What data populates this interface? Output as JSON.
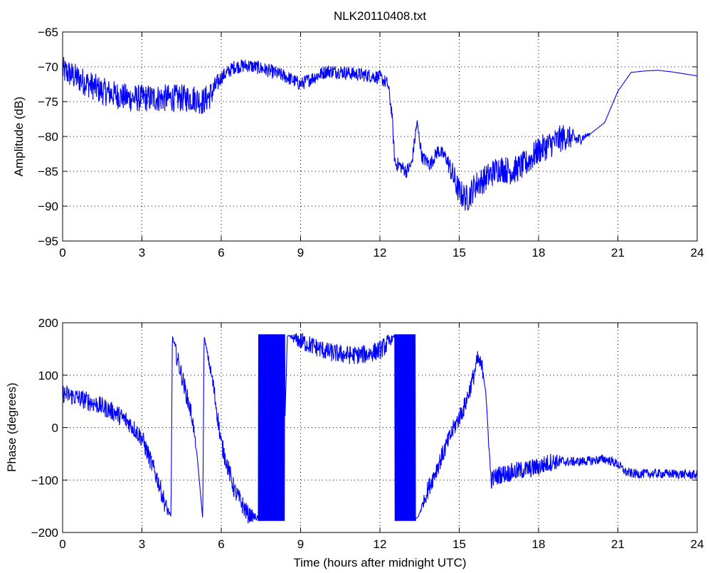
{
  "figure": {
    "colors": {
      "line": "#0000ff",
      "axis": "#000000",
      "grid": "#000000",
      "background": "#ffffff"
    }
  },
  "chart_data": [
    {
      "type": "line",
      "title": "NLK20110408.txt",
      "xlabel": "",
      "ylabel": "Amplitude (dB)",
      "xlim": [
        0,
        24
      ],
      "ylim": [
        -95,
        -65
      ],
      "xticks": [
        0,
        3,
        6,
        9,
        12,
        15,
        18,
        21,
        24
      ],
      "yticks": [
        -65,
        -70,
        -75,
        -80,
        -85,
        -90,
        -95
      ],
      "xtick_labels": [
        "0",
        "3",
        "6",
        "9",
        "12",
        "15",
        "18",
        "21",
        "24"
      ],
      "ytick_labels": [
        "−65",
        "−70",
        "−75",
        "−80",
        "−85",
        "−90",
        "−95"
      ],
      "grid": true,
      "noise_amplitude": [
        0.4,
        2.0
      ],
      "series": [
        {
          "x": [
            0,
            0.5,
            1,
            1.5,
            2,
            2.5,
            3,
            3.5,
            4,
            4.5,
            5,
            5.3,
            5.6,
            6,
            6.5,
            7,
            7.5,
            8,
            8.5,
            9,
            9.5,
            10,
            10.5,
            11,
            11.5,
            12,
            12.3,
            12.45,
            12.55,
            12.6,
            12.7,
            13.0,
            13.2,
            13.4,
            13.6,
            13.9,
            14.2,
            14.5,
            14.8,
            15.0,
            15.3,
            15.6,
            16.0,
            16.5,
            17.0,
            17.5,
            18.0,
            18.5,
            19.0,
            19.5,
            20.0,
            20.5,
            21.0,
            21.5,
            22.0,
            22.5,
            23.0,
            23.5,
            24.0
          ],
          "y": [
            -70.5,
            -71.5,
            -72.5,
            -73.5,
            -74,
            -74.5,
            -74.5,
            -74.5,
            -74.5,
            -74.5,
            -74.5,
            -75,
            -74,
            -71.5,
            -70,
            -69.8,
            -70.2,
            -70.8,
            -71.5,
            -72.5,
            -71.5,
            -70.6,
            -70.7,
            -71,
            -71.2,
            -71.5,
            -72.5,
            -76.5,
            -83,
            -84,
            -84,
            -85,
            -84,
            -78,
            -83,
            -84,
            -82,
            -83,
            -86,
            -88,
            -89,
            -87,
            -86,
            -84.5,
            -85,
            -84,
            -82,
            -81,
            -80,
            -80.5,
            -79.5,
            -78,
            -73.5,
            -70.8,
            -70.6,
            -70.5,
            -70.7,
            -71,
            -71.3
          ],
          "noise": [
            1,
            1,
            1,
            1,
            1,
            1,
            1,
            1,
            1,
            1,
            1,
            1,
            1,
            0.5,
            0.5,
            0.5,
            0.5,
            0.5,
            0.5,
            0.5,
            0.5,
            0.5,
            0.5,
            0.5,
            0.5,
            0.5,
            0.5,
            0.5,
            0.5,
            0.5,
            0.5,
            0.5,
            0.5,
            0.5,
            0.5,
            0.5,
            0.5,
            0.5,
            1,
            1,
            1,
            1,
            1,
            1,
            1,
            1,
            1,
            1,
            1,
            0.5,
            0,
            0,
            0,
            0,
            0,
            0,
            0,
            0,
            0
          ]
        }
      ]
    },
    {
      "type": "line",
      "title": "",
      "xlabel": "Time (hours after midnight UTC)",
      "ylabel": "Phase (degrees)",
      "xlim": [
        0,
        24
      ],
      "ylim": [
        -200,
        200
      ],
      "xticks": [
        0,
        3,
        6,
        9,
        12,
        15,
        18,
        21,
        24
      ],
      "yticks": [
        200,
        100,
        0,
        -100,
        -200
      ],
      "xtick_labels": [
        "0",
        "3",
        "6",
        "9",
        "12",
        "15",
        "18",
        "21",
        "24"
      ],
      "ytick_labels": [
        "200",
        "100",
        "0",
        "−100",
        "−200"
      ],
      "grid": true,
      "noise_amplitude": [
        6,
        18
      ],
      "series": [
        {
          "x": [
            0,
            0.5,
            1,
            1.5,
            2,
            2.5,
            3,
            3.3,
            3.6,
            3.9,
            4.1,
            4.15,
            4.3,
            4.6,
            4.9,
            5.1,
            5.3,
            5.35,
            5.7,
            6.0,
            6.5,
            7.0,
            7.5,
            7.9,
            8.3,
            8.5,
            9.0,
            9.5,
            10.0,
            10.5,
            11.0,
            11.5,
            12.0,
            12.3,
            12.55,
            12.6,
            13.0,
            13.3,
            13.45,
            13.8,
            14.3,
            14.8,
            15.2,
            15.5,
            15.7,
            15.9,
            16.0,
            16.2,
            16.5,
            17.0,
            17.5,
            18.0,
            18.5,
            19.0,
            19.5,
            20.0,
            20.5,
            20.8,
            21.0,
            21.3,
            21.6,
            22.0,
            23.0,
            24.0
          ],
          "y": [
            65,
            58,
            50,
            40,
            28,
            10,
            -20,
            -60,
            -100,
            -150,
            -170,
            175,
            140,
            80,
            20,
            -60,
            -175,
            175,
            80,
            -30,
            -120,
            -165,
            -175,
            -178,
            -178,
            175,
            165,
            155,
            145,
            140,
            138,
            140,
            148,
            160,
            175,
            -175,
            -178,
            -175,
            -170,
            -120,
            -60,
            0,
            40,
            90,
            130,
            110,
            70,
            -100,
            -90,
            -85,
            -80,
            -75,
            -65,
            -65,
            -65,
            -63,
            -60,
            -65,
            -70,
            -85,
            -88,
            -88,
            -88,
            -90
          ],
          "noise": [
            1,
            1,
            1,
            1,
            1,
            1,
            1,
            1,
            1,
            1,
            0,
            0,
            1,
            1,
            1,
            0,
            0,
            0,
            1,
            1,
            1,
            1,
            0,
            0,
            0,
            0,
            1,
            1,
            1,
            1,
            1,
            1,
            1,
            1,
            0,
            0,
            1,
            0,
            0,
            1,
            1,
            1,
            1,
            1,
            1,
            1,
            0,
            1,
            1,
            1,
            1,
            1,
            1,
            0.5,
            0.5,
            0.5,
            0.5,
            0.5,
            0.5,
            0.5,
            0.5,
            0.5,
            0.5,
            0.5
          ]
        }
      ],
      "wrap_bursts": [
        [
          7.4,
          8.4
        ],
        [
          12.55,
          13.35
        ]
      ]
    }
  ]
}
